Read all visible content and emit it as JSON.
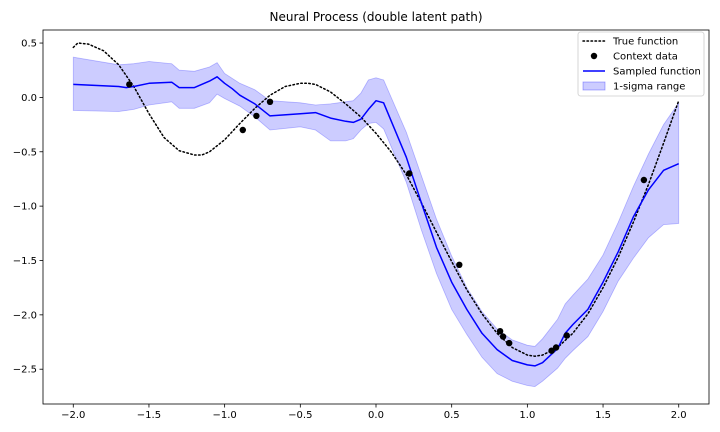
{
  "chart_data": {
    "type": "line",
    "title": "Neural Process (double latent path)",
    "xlabel": "",
    "ylabel": "",
    "xlim": [
      -2.2,
      2.2
    ],
    "ylim": [
      -2.82,
      0.62
    ],
    "xticks": [
      -2.0,
      -1.5,
      -1.0,
      -0.5,
      0.0,
      0.5,
      1.0,
      1.5,
      2.0
    ],
    "xtick_labels": [
      "−2.0",
      "−1.5",
      "−1.0",
      "−0.5",
      "0.0",
      "0.5",
      "1.0",
      "1.5",
      "2.0"
    ],
    "yticks": [
      0.5,
      0.0,
      -0.5,
      -1.0,
      -1.5,
      -2.0,
      -2.5
    ],
    "ytick_labels": [
      "0.5",
      "0.0",
      "−0.5",
      "−1.0",
      "−1.5",
      "−2.0",
      "−2.5"
    ],
    "grid": false,
    "legend_position": "top-right",
    "legend": [
      {
        "label": "True function",
        "kind": "dotted-line",
        "color": "#000000"
      },
      {
        "label": "Context data",
        "kind": "marker",
        "color": "#000000"
      },
      {
        "label": "Sampled function",
        "kind": "line",
        "color": "#0000ff"
      },
      {
        "label": "1-sigma range",
        "kind": "band",
        "color": "#0000ff"
      }
    ],
    "series": [
      {
        "name": "True function",
        "style": "dotted",
        "color": "#000000",
        "x": [
          -2.0,
          -1.97,
          -1.9,
          -1.8,
          -1.7,
          -1.6,
          -1.5,
          -1.4,
          -1.3,
          -1.2,
          -1.15,
          -1.1,
          -1.0,
          -0.9,
          -0.8,
          -0.7,
          -0.6,
          -0.5,
          -0.45,
          -0.4,
          -0.3,
          -0.2,
          -0.1,
          0.0,
          0.1,
          0.2,
          0.3,
          0.4,
          0.5,
          0.6,
          0.7,
          0.8,
          0.9,
          1.0,
          1.05,
          1.1,
          1.2,
          1.3,
          1.4,
          1.5,
          1.6,
          1.7,
          1.8,
          1.9,
          2.0
        ],
        "y": [
          0.46,
          0.5,
          0.49,
          0.43,
          0.3,
          0.1,
          -0.15,
          -0.37,
          -0.49,
          -0.53,
          -0.53,
          -0.5,
          -0.39,
          -0.24,
          -0.1,
          0.02,
          0.1,
          0.13,
          0.13,
          0.12,
          0.05,
          -0.06,
          -0.18,
          -0.33,
          -0.5,
          -0.71,
          -0.97,
          -1.24,
          -1.51,
          -1.77,
          -1.99,
          -2.17,
          -2.3,
          -2.37,
          -2.38,
          -2.37,
          -2.3,
          -2.17,
          -1.99,
          -1.75,
          -1.47,
          -1.15,
          -0.8,
          -0.42,
          -0.03
        ]
      },
      {
        "name": "Sampled function",
        "style": "solid",
        "color": "#0000ff",
        "x": [
          -2.0,
          -1.7,
          -1.65,
          -1.6,
          -1.5,
          -1.35,
          -1.3,
          -1.2,
          -1.1,
          -1.05,
          -1.0,
          -0.95,
          -0.9,
          -0.8,
          -0.7,
          -0.5,
          -0.4,
          -0.3,
          -0.2,
          -0.15,
          -0.1,
          -0.05,
          0.0,
          0.05,
          0.2,
          0.3,
          0.4,
          0.5,
          0.6,
          0.7,
          0.8,
          0.9,
          1.0,
          1.05,
          1.1,
          1.2,
          1.25,
          1.3,
          1.4,
          1.5,
          1.6,
          1.7,
          1.8,
          1.9,
          2.0
        ],
        "y": [
          0.12,
          0.1,
          0.09,
          0.1,
          0.13,
          0.14,
          0.09,
          0.09,
          0.15,
          0.19,
          0.13,
          0.08,
          0.02,
          -0.06,
          -0.17,
          -0.15,
          -0.14,
          -0.19,
          -0.22,
          -0.23,
          -0.2,
          -0.11,
          -0.03,
          -0.05,
          -0.55,
          -0.97,
          -1.38,
          -1.7,
          -1.95,
          -2.17,
          -2.32,
          -2.42,
          -2.46,
          -2.47,
          -2.44,
          -2.31,
          -2.17,
          -2.09,
          -1.95,
          -1.7,
          -1.42,
          -1.1,
          -0.85,
          -0.67,
          -0.61
        ]
      }
    ],
    "band": {
      "name": "1-sigma range",
      "color": "#0000ff",
      "x": [
        -2.0,
        -1.7,
        -1.6,
        -1.5,
        -1.35,
        -1.3,
        -1.2,
        -1.1,
        -1.05,
        -1.0,
        -0.9,
        -0.8,
        -0.7,
        -0.5,
        -0.4,
        -0.3,
        -0.2,
        -0.15,
        -0.1,
        -0.05,
        0.0,
        0.05,
        0.2,
        0.3,
        0.4,
        0.5,
        0.6,
        0.7,
        0.8,
        0.9,
        1.0,
        1.05,
        1.1,
        1.2,
        1.25,
        1.3,
        1.4,
        1.5,
        1.6,
        1.7,
        1.8,
        1.9,
        2.0
      ],
      "upper": [
        0.37,
        0.3,
        0.31,
        0.33,
        0.31,
        0.25,
        0.24,
        0.28,
        0.32,
        0.22,
        0.13,
        0.07,
        -0.03,
        -0.05,
        -0.07,
        -0.06,
        -0.04,
        -0.03,
        0.04,
        0.16,
        0.18,
        0.16,
        -0.32,
        -0.72,
        -1.12,
        -1.46,
        -1.75,
        -1.97,
        -2.13,
        -2.23,
        -2.28,
        -2.29,
        -2.22,
        -2.04,
        -1.9,
        -1.82,
        -1.67,
        -1.45,
        -1.15,
        -0.82,
        -0.52,
        -0.25,
        -0.05
      ],
      "lower": [
        -0.12,
        -0.13,
        -0.11,
        -0.07,
        -0.04,
        -0.1,
        -0.1,
        -0.05,
        0.03,
        -0.01,
        -0.08,
        -0.18,
        -0.3,
        -0.27,
        -0.3,
        -0.4,
        -0.4,
        -0.38,
        -0.3,
        -0.24,
        -0.23,
        -0.29,
        -0.78,
        -1.22,
        -1.62,
        -1.95,
        -2.18,
        -2.39,
        -2.54,
        -2.61,
        -2.65,
        -2.66,
        -2.61,
        -2.49,
        -2.4,
        -2.33,
        -2.2,
        -1.97,
        -1.69,
        -1.48,
        -1.29,
        -1.17,
        -1.16
      ]
    },
    "context_points": {
      "name": "Context data",
      "color": "#000000",
      "x": [
        -1.63,
        -0.88,
        -0.79,
        -0.7,
        0.22,
        0.55,
        0.82,
        0.84,
        0.88,
        1.16,
        1.19,
        1.26,
        1.77
      ],
      "y": [
        0.12,
        -0.3,
        -0.17,
        -0.04,
        -0.7,
        -1.54,
        -2.15,
        -2.2,
        -2.26,
        -2.33,
        -2.3,
        -2.19,
        -0.76
      ]
    }
  }
}
